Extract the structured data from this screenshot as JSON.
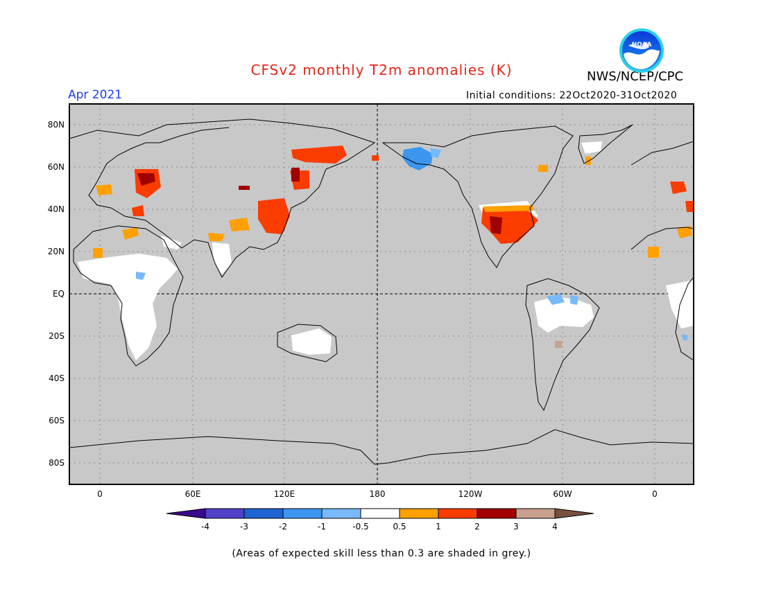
{
  "header": {
    "title": "CFSv2 monthly T2m anomalies (K)",
    "agency": "NWS/NCEP/CPC",
    "month": "Apr 2021",
    "initial_conditions": "Initial conditions: 22Oct2020-31Oct2020",
    "logo_text": "NOAA"
  },
  "map": {
    "projection": "cylindrical equidistant, centered on 180",
    "lat_ticks": [
      "80N",
      "60N",
      "40N",
      "20N",
      "EQ",
      "20S",
      "40S",
      "60S",
      "80S"
    ],
    "lon_ticks": [
      "0",
      "60E",
      "120E",
      "180",
      "120W",
      "60W",
      "0"
    ],
    "background_color": "#c8c8c8",
    "colors": {
      "below_-4": "#3a0a8c",
      "-4_-3": "#5040c8",
      "-3_-2": "#1e64d2",
      "-2_-1": "#3c96f0",
      "-1_-0.5": "#78b9fa",
      "-0.5_0.5": "#ffffff",
      "0.5_1": "#ffa000",
      "1_2": "#fa3c00",
      "2_3": "#a00000",
      "3_4": "#c8a08c",
      "above_4": "#785040"
    }
  },
  "colorbar": {
    "labels": [
      "-4",
      "-3",
      "-2",
      "-1",
      "-0.5",
      "0.5",
      "1",
      "2",
      "3",
      "4"
    ],
    "fills": [
      "#5040c8",
      "#1e64d2",
      "#3c96f0",
      "#78b9fa",
      "#ffffff",
      "#ffa000",
      "#fa3c00",
      "#a00000",
      "#c8a08c"
    ],
    "low_end": "#3a0a8c",
    "high_end": "#785040"
  },
  "footnote": "(Areas of expected skill less than 0.3 are shaded in grey.)"
}
